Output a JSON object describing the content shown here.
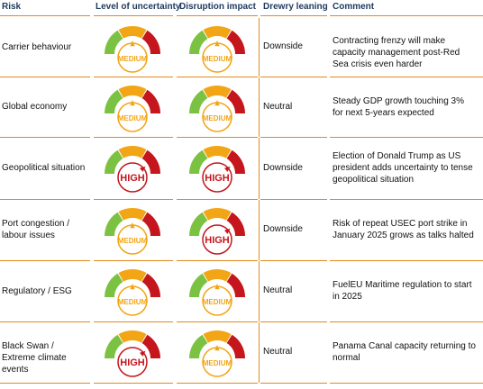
{
  "header": {
    "risk": "Risk",
    "uncertainty": "Level of uncertainty",
    "disruption": "Disruption impact",
    "leaning": "Drewry leaning",
    "comment": "Comment"
  },
  "colors": {
    "accent_line": "#e08a1e",
    "header_text": "#1f3a5f",
    "gauge_green": "#7cc242",
    "gauge_amber": "#f2a515",
    "gauge_red": "#c4161c",
    "medium_text": "#f2a515",
    "high_text": "#c4161c"
  },
  "rows": [
    {
      "risk": "Carrier behaviour",
      "uncertainty": "MEDIUM",
      "disruption": "MEDIUM",
      "leaning": "Downside",
      "comment": "Contracting frenzy will make capacity management post-Red Sea crisis even harder"
    },
    {
      "risk": "Global economy",
      "uncertainty": "MEDIUM",
      "disruption": "MEDIUM",
      "leaning": "Neutral",
      "comment": "Steady GDP growth touching 3% for next 5-years expected"
    },
    {
      "risk": "Geopolitical situation",
      "uncertainty": "HIGH",
      "disruption": "HIGH",
      "leaning": "Downside",
      "comment": "Election of Donald Trump as US president adds uncertainty to tense geopolitical situation"
    },
    {
      "risk": "Port congestion / labour issues",
      "uncertainty": "MEDIUM",
      "disruption": "HIGH",
      "leaning": "Downside",
      "comment": "Risk of repeat USEC port strike in January 2025 grows as talks halted"
    },
    {
      "risk": "Regulatory / ESG",
      "uncertainty": "MEDIUM",
      "disruption": "MEDIUM",
      "leaning": "Neutral",
      "comment": "FuelEU Maritime regulation to start in 2025"
    },
    {
      "risk": "Black Swan / Extreme climate events",
      "uncertainty": "HIGH",
      "disruption": "MEDIUM",
      "leaning": "Neutral",
      "comment": "Panama Canal capacity returning to normal"
    }
  ]
}
